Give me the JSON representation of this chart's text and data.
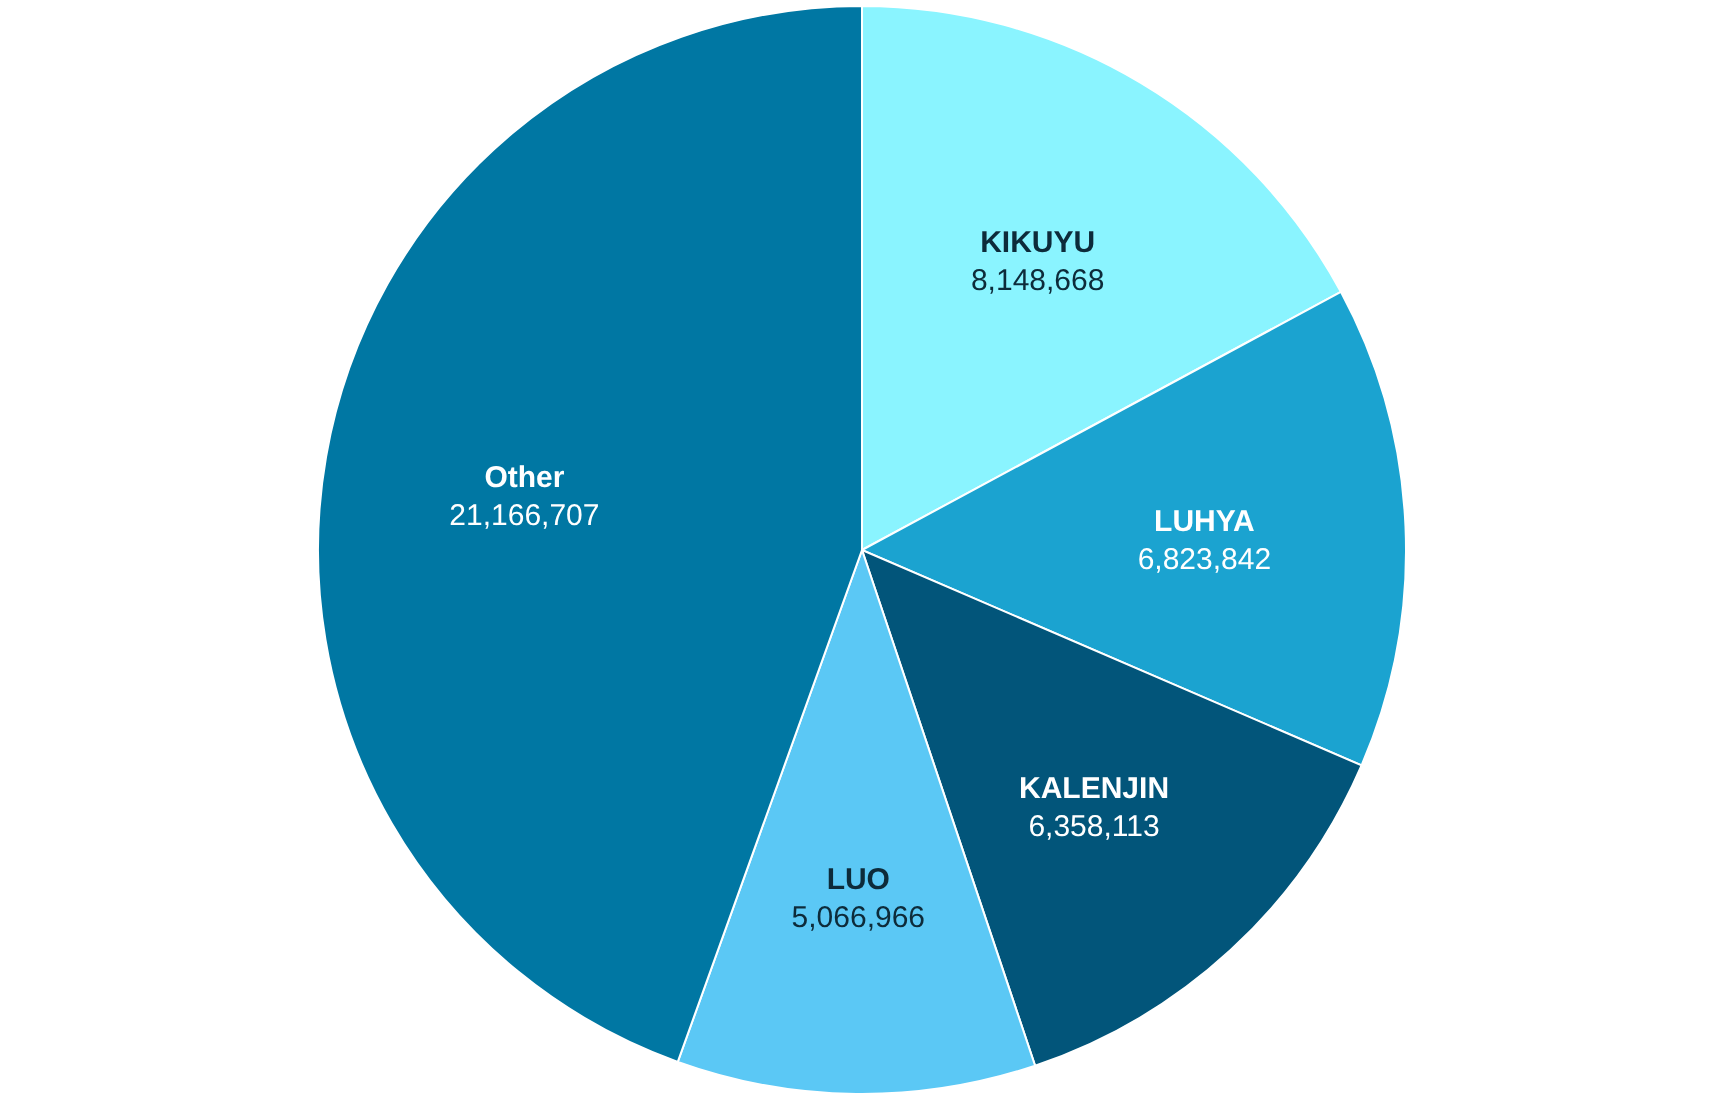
{
  "chart_data": {
    "type": "pie",
    "categories": [
      "KIKUYU",
      "LUHYA",
      "KALENJIN",
      "LUO",
      "Other"
    ],
    "values": [
      8148668,
      6823842,
      6358113,
      5066966,
      21166707
    ],
    "value_labels": [
      "8,148,668",
      "6,823,842",
      "6,358,113",
      "5,066,966",
      "21,166,707"
    ],
    "colors": [
      "#8af4ff",
      "#1ba3d0",
      "#02557a",
      "#5bc8f5",
      "#0077a3"
    ]
  }
}
